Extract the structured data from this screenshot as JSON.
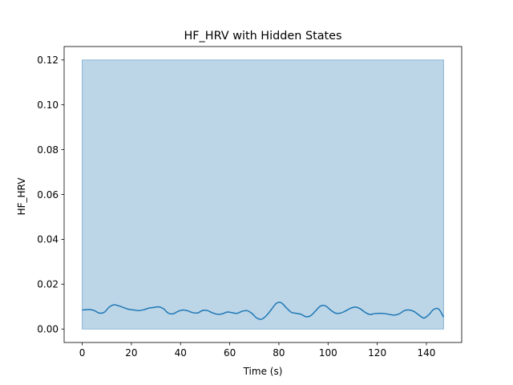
{
  "chart_data": {
    "type": "line",
    "title": "HF_HRV with Hidden States",
    "xlabel": "Time (s)",
    "ylabel": "HF_HRV",
    "xlim": [
      -7.35,
      154.35
    ],
    "ylim": [
      -0.006,
      0.126
    ],
    "xticks": [
      0,
      20,
      40,
      60,
      80,
      100,
      120,
      140
    ],
    "yticks": [
      0.0,
      0.02,
      0.04,
      0.06,
      0.08,
      0.1,
      0.12
    ],
    "ytick_labels": [
      "0.00",
      "0.02",
      "0.04",
      "0.06",
      "0.08",
      "0.10",
      "0.12"
    ],
    "grid": false,
    "state_band": {
      "x_start": 0,
      "x_end": 147,
      "y_min": 0.0,
      "y_max": 0.12,
      "color": "#a6c8e0"
    },
    "series": [
      {
        "color": "#1f77b4",
        "x": [
          0,
          3,
          5,
          7,
          9,
          11,
          13,
          15,
          17,
          19,
          21,
          23,
          25,
          27,
          29,
          31,
          33,
          35,
          37,
          39,
          41,
          43,
          45,
          47,
          49,
          51,
          53,
          55,
          57,
          59,
          61,
          63,
          65,
          67,
          69,
          71,
          73,
          75,
          77,
          79,
          81,
          83,
          85,
          87,
          89,
          91,
          93,
          95,
          97,
          99,
          101,
          103,
          105,
          107,
          109,
          111,
          113,
          115,
          117,
          119,
          121,
          123,
          125,
          127,
          129,
          131,
          133,
          135,
          137,
          139,
          141,
          143,
          145,
          147
        ],
        "y": [
          0.0085,
          0.0087,
          0.0082,
          0.0071,
          0.0075,
          0.0098,
          0.0108,
          0.0103,
          0.0095,
          0.0088,
          0.0085,
          0.0082,
          0.0086,
          0.0093,
          0.0096,
          0.0099,
          0.0091,
          0.0071,
          0.0068,
          0.0079,
          0.0085,
          0.0081,
          0.0073,
          0.0072,
          0.0083,
          0.0082,
          0.0072,
          0.0066,
          0.0068,
          0.0076,
          0.0073,
          0.007,
          0.0079,
          0.0082,
          0.007,
          0.0049,
          0.0044,
          0.0061,
          0.0088,
          0.0115,
          0.0117,
          0.0095,
          0.0075,
          0.007,
          0.0066,
          0.0055,
          0.006,
          0.0082,
          0.0103,
          0.0103,
          0.0085,
          0.0071,
          0.0071,
          0.008,
          0.0092,
          0.0098,
          0.0091,
          0.0075,
          0.0065,
          0.0069,
          0.007,
          0.0069,
          0.0065,
          0.0062,
          0.0068,
          0.0082,
          0.0085,
          0.0078,
          0.0062,
          0.0049,
          0.0064,
          0.0088,
          0.0089,
          0.0053
        ]
      }
    ]
  }
}
